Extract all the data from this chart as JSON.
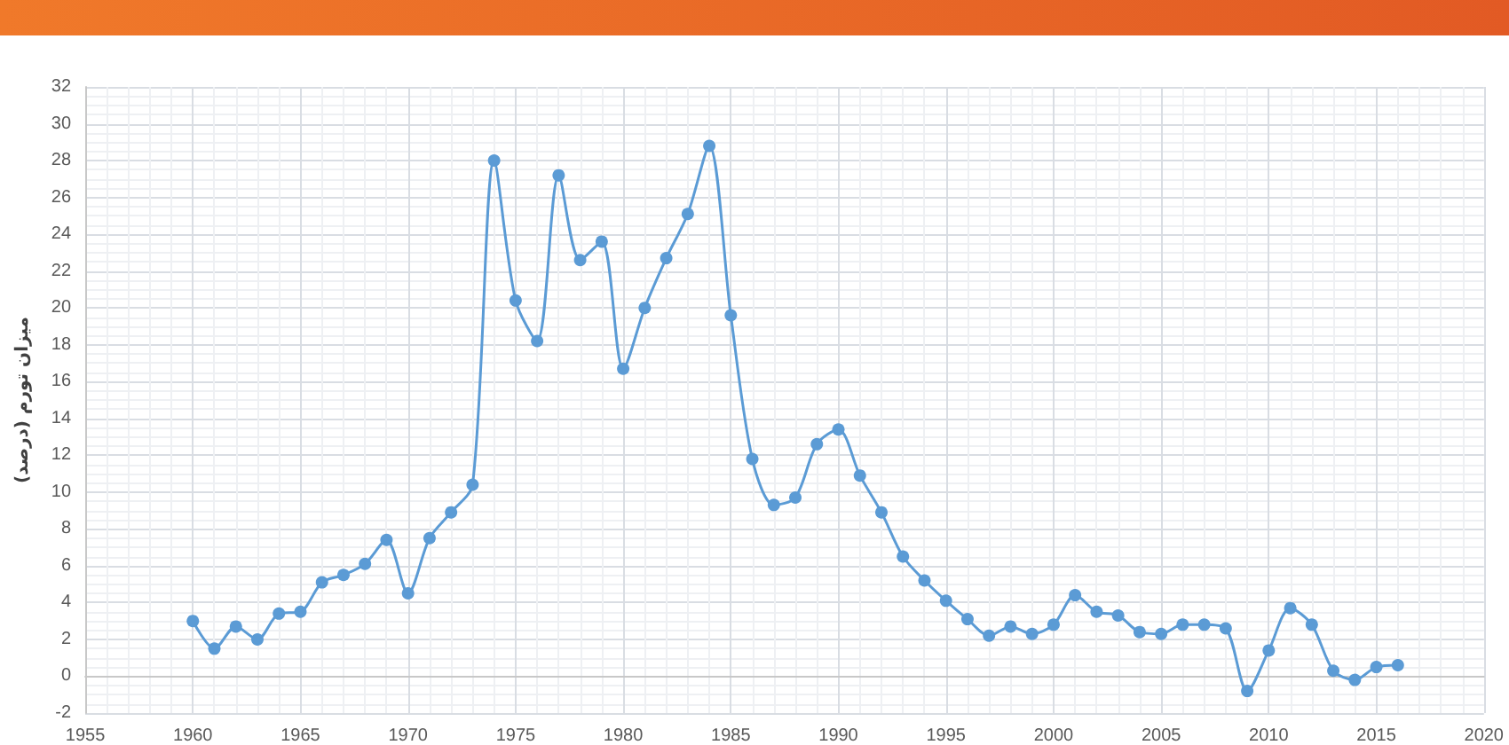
{
  "chart_data": {
    "type": "line",
    "ylabel": "میزان تورم (درصد)",
    "x": [
      1960,
      1961,
      1962,
      1963,
      1964,
      1965,
      1966,
      1967,
      1968,
      1969,
      1970,
      1971,
      1972,
      1973,
      1974,
      1975,
      1976,
      1977,
      1978,
      1979,
      1980,
      1981,
      1982,
      1983,
      1984,
      1985,
      1986,
      1987,
      1988,
      1989,
      1990,
      1991,
      1992,
      1993,
      1994,
      1995,
      1996,
      1997,
      1998,
      1999,
      2000,
      2001,
      2002,
      2003,
      2004,
      2005,
      2006,
      2007,
      2008,
      2009,
      2010,
      2011,
      2012,
      2013,
      2014,
      2015,
      2016
    ],
    "series": [
      {
        "color": "#5b9bd5",
        "values": [
          3.0,
          1.5,
          2.7,
          2.0,
          3.4,
          3.5,
          5.1,
          5.5,
          6.1,
          7.4,
          4.5,
          7.5,
          8.9,
          10.4,
          28.0,
          20.4,
          18.2,
          27.2,
          22.6,
          23.6,
          16.7,
          20.0,
          22.7,
          25.1,
          28.8,
          19.6,
          11.8,
          9.3,
          9.7,
          12.6,
          13.4,
          10.9,
          8.9,
          6.5,
          5.2,
          4.1,
          3.1,
          2.2,
          2.7,
          2.3,
          2.8,
          4.4,
          3.5,
          3.3,
          2.4,
          2.3,
          2.8,
          2.8,
          2.6,
          -0.8,
          1.4,
          3.7,
          2.8,
          0.3,
          -0.2,
          0.5,
          0.6
        ]
      }
    ],
    "xlim": [
      1955,
      2020
    ],
    "xticks": [
      1955,
      1960,
      1965,
      1970,
      1975,
      1980,
      1985,
      1990,
      1995,
      2000,
      2005,
      2010,
      2015,
      2020
    ],
    "ylim": [
      -2,
      32
    ],
    "yticks": [
      -2,
      0,
      2,
      4,
      6,
      8,
      10,
      12,
      14,
      16,
      18,
      20,
      22,
      24,
      26,
      28,
      30,
      32
    ],
    "grid": true,
    "marker": "circle",
    "line_style": "solid"
  }
}
